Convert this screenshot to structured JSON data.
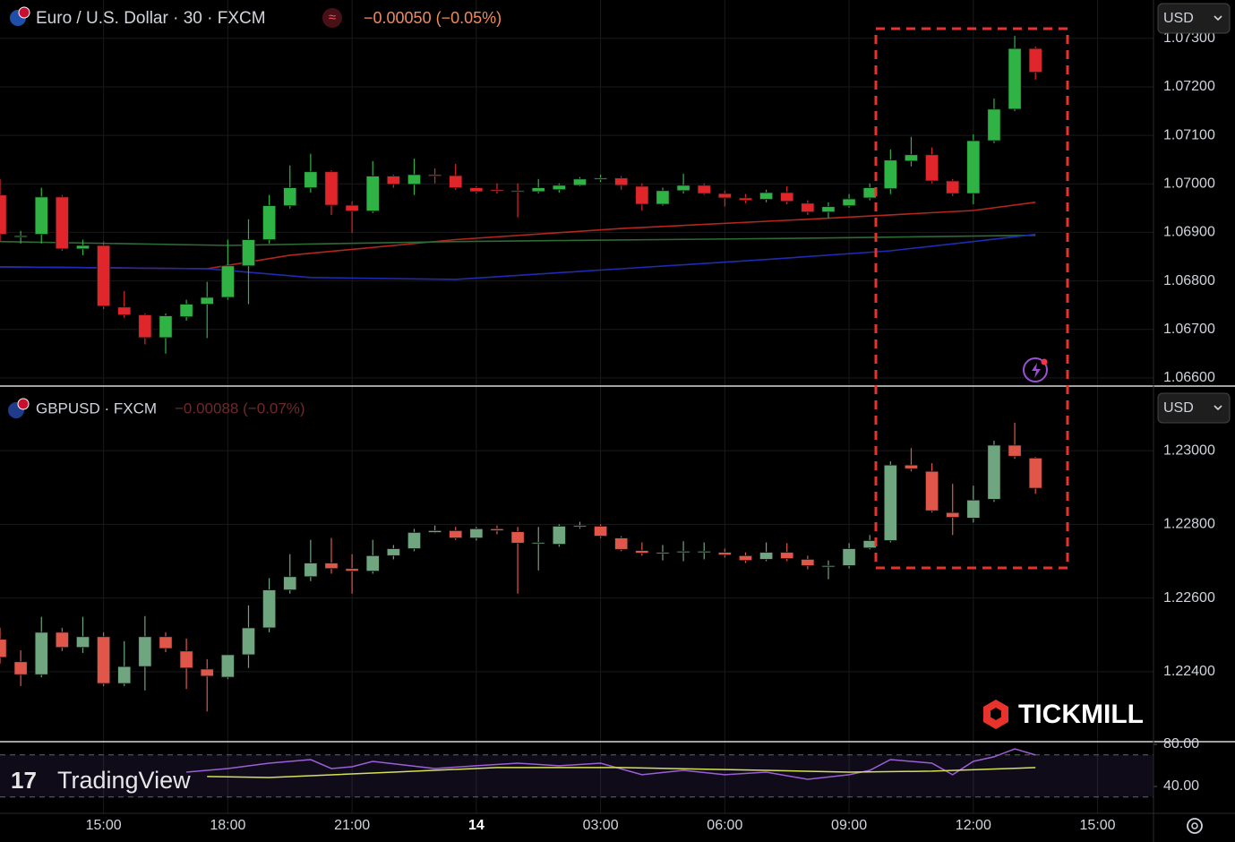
{
  "chart_data": [
    {
      "type": "candlestick",
      "title": "Euro / U.S. Dollar · 30 · FXCM",
      "change": "−0.00050 (−0.05%)",
      "currency": "USD",
      "up_color": "#2fb344",
      "down_color": "#e0262a",
      "ylim": [
        1.06585,
        1.07379
      ],
      "yticks": [
        {
          "value": 1.073,
          "label": "1.07300"
        },
        {
          "value": 1.072,
          "label": "1.07200"
        },
        {
          "value": 1.071,
          "label": "1.07100"
        },
        {
          "value": 1.07,
          "label": "1.07000"
        },
        {
          "value": 1.069,
          "label": "1.06900"
        },
        {
          "value": 1.068,
          "label": "1.06800"
        },
        {
          "value": 1.067,
          "label": "1.06700"
        },
        {
          "value": 1.066,
          "label": "1.06600"
        }
      ],
      "open": [
        1.06977,
        1.06892,
        1.06896,
        1.06973,
        1.06866,
        1.06873,
        1.06746,
        1.0673,
        1.06683,
        1.06726,
        1.06752,
        1.06766,
        1.06831,
        1.06885,
        1.06955,
        1.06992,
        1.07025,
        1.06956,
        1.06944,
        1.07016,
        1.06999,
        1.07019,
        1.07017,
        1.06992,
        1.06988,
        1.06986,
        1.06984,
        1.06988,
        1.06997,
        1.0701,
        1.07012,
        1.06995,
        1.06958,
        1.06986,
        1.06997,
        1.0698,
        1.06971,
        1.06968,
        1.06982,
        1.0696,
        1.06942,
        1.06955,
        1.06971,
        1.0699,
        1.07047,
        1.0706,
        1.07006,
        1.0698,
        1.07089,
        1.07154,
        1.07279
      ],
      "high": [
        1.0701,
        1.06903,
        1.06992,
        1.06977,
        1.06885,
        1.06881,
        1.06779,
        1.06733,
        1.06733,
        1.06761,
        1.06798,
        1.06885,
        1.06927,
        1.06977,
        1.07038,
        1.07062,
        1.07028,
        1.06964,
        1.07047,
        1.07019,
        1.07052,
        1.07032,
        1.07041,
        1.06995,
        1.07001,
        1.07001,
        1.0701,
        1.07001,
        1.07014,
        1.07019,
        1.07016,
        1.07001,
        1.06992,
        1.07021,
        1.07001,
        1.06986,
        1.06979,
        1.06988,
        1.06995,
        1.06966,
        1.06962,
        1.06979,
        1.07001,
        1.07071,
        1.07097,
        1.07075,
        1.0701,
        1.07102,
        1.07176,
        1.07305,
        1.07283
      ],
      "low": [
        1.06881,
        1.06877,
        1.06877,
        1.06862,
        1.06853,
        1.06742,
        1.06724,
        1.06669,
        1.0665,
        1.06718,
        1.06682,
        1.06761,
        1.06752,
        1.06877,
        1.06949,
        1.06982,
        1.06936,
        1.06899,
        1.0694,
        1.06992,
        1.06977,
        1.07001,
        1.06988,
        1.0698,
        1.0698,
        1.06931,
        1.0698,
        1.06982,
        1.06995,
        1.07004,
        1.06988,
        1.06945,
        1.06955,
        1.0698,
        1.06977,
        1.06953,
        1.0696,
        1.06962,
        1.06958,
        1.06936,
        1.06929,
        1.06951,
        1.06966,
        1.06979,
        1.07036,
        1.07001,
        1.06975,
        1.06958,
        1.07084,
        1.0715,
        1.07215
      ],
      "close": [
        1.06896,
        1.06893,
        1.06973,
        1.06866,
        1.06873,
        1.06748,
        1.0673,
        1.06683,
        1.06728,
        1.06752,
        1.06766,
        1.06831,
        1.06885,
        1.06955,
        1.06992,
        1.07025,
        1.06956,
        1.06944,
        1.07016,
        1.06999,
        1.07019,
        1.07016,
        1.06992,
        1.06984,
        1.06986,
        1.06984,
        1.06992,
        1.06997,
        1.0701,
        1.07012,
        1.06997,
        1.06958,
        1.06986,
        1.06997,
        1.0698,
        1.06971,
        1.06966,
        1.06982,
        1.06964,
        1.06942,
        1.06953,
        1.06969,
        1.06992,
        1.07049,
        1.0706,
        1.07006,
        1.0698,
        1.07089,
        1.07154,
        1.07279,
        1.0723
      ],
      "overlays": [
        {
          "color": "#b3261e",
          "x": [
            0,
            10,
            14,
            22,
            30,
            39,
            43,
            47,
            50
          ],
          "values": [
            1.06829,
            1.06825,
            1.06853,
            1.06885,
            1.06908,
            1.06927,
            1.06936,
            1.06945,
            1.06962
          ]
        },
        {
          "color": "#2e6b34",
          "x": [
            0,
            11,
            22,
            39,
            50
          ],
          "values": [
            1.06881,
            1.06873,
            1.06881,
            1.06888,
            1.06894
          ]
        },
        {
          "color": "#1f2bb0",
          "x": [
            0,
            10,
            15,
            22,
            30,
            37,
            43,
            47,
            50
          ],
          "values": [
            1.06829,
            1.06825,
            1.06807,
            1.06803,
            1.06825,
            1.06844,
            1.06862,
            1.06881,
            1.06896
          ]
        }
      ]
    },
    {
      "type": "candlestick",
      "title": "GBPUSD · FXCM",
      "change": "−0.00088 (−0.07%)",
      "currency": "USD",
      "up_color": "#6fa57f",
      "down_color": "#e0574a",
      "ylim": [
        1.2221,
        1.23173
      ],
      "yticks": [
        {
          "value": 1.23,
          "label": "1.23000"
        },
        {
          "value": 1.228,
          "label": "1.22800"
        },
        {
          "value": 1.226,
          "label": "1.22600"
        },
        {
          "value": 1.224,
          "label": "1.22400"
        }
      ],
      "open": [
        1.22488,
        1.22427,
        1.22392,
        1.22507,
        1.22466,
        1.22495,
        1.22368,
        1.22414,
        1.22495,
        1.22456,
        1.22407,
        1.22385,
        1.22446,
        1.22519,
        1.22622,
        1.22658,
        1.22695,
        1.2268,
        1.22673,
        1.22715,
        1.22734,
        1.22778,
        1.22783,
        1.22763,
        1.22788,
        1.2278,
        1.22749,
        1.22746,
        1.22795,
        1.22795,
        1.22763,
        1.22729,
        1.22722,
        1.22724,
        1.22724,
        1.22724,
        1.22715,
        1.22705,
        1.22724,
        1.22705,
        1.22685,
        1.22688,
        1.22736,
        1.22756,
        1.22961,
        1.22944,
        1.22832,
        1.22817,
        1.22868,
        1.23015,
        1.2298
      ],
      "high": [
        1.22519,
        1.22458,
        1.22549,
        1.22519,
        1.22549,
        1.22507,
        1.22483,
        1.22551,
        1.22507,
        1.2249,
        1.22434,
        1.22446,
        1.2258,
        1.22654,
        1.22719,
        1.22758,
        1.22763,
        1.22719,
        1.22758,
        1.22744,
        1.22788,
        1.22797,
        1.22793,
        1.22793,
        1.22797,
        1.22793,
        1.22793,
        1.228,
        1.22807,
        1.228,
        1.22768,
        1.22751,
        1.22744,
        1.22754,
        1.22751,
        1.22734,
        1.22724,
        1.22751,
        1.22749,
        1.22715,
        1.22702,
        1.22749,
        1.22771,
        1.22971,
        1.23007,
        1.22966,
        1.2291,
        1.22905,
        1.23027,
        1.23076,
        1.22983
      ],
      "low": [
        1.22422,
        1.22361,
        1.22385,
        1.22456,
        1.22451,
        1.22361,
        1.22361,
        1.22349,
        1.22453,
        1.22353,
        1.22292,
        1.2238,
        1.2241,
        1.22507,
        1.22612,
        1.22646,
        1.22666,
        1.22612,
        1.22666,
        1.22705,
        1.22727,
        1.22776,
        1.22758,
        1.22756,
        1.22773,
        1.22612,
        1.22675,
        1.22739,
        1.22788,
        1.22763,
        1.22727,
        1.22715,
        1.22702,
        1.227,
        1.22705,
        1.2271,
        1.22695,
        1.227,
        1.227,
        1.22678,
        1.22651,
        1.2268,
        1.22732,
        1.22751,
        1.22944,
        1.22832,
        1.22771,
        1.22805,
        1.22861,
        1.22978,
        1.22883
      ],
      "close": [
        1.22439,
        1.22392,
        1.22507,
        1.22466,
        1.22495,
        1.22368,
        1.22414,
        1.22495,
        1.22463,
        1.2241,
        1.22388,
        1.22446,
        1.22519,
        1.22622,
        1.22658,
        1.22695,
        1.2268,
        1.22673,
        1.22715,
        1.22734,
        1.22778,
        1.22783,
        1.22763,
        1.22788,
        1.22783,
        1.22749,
        1.22751,
        1.22795,
        1.22797,
        1.22768,
        1.22732,
        1.22722,
        1.22724,
        1.22727,
        1.22727,
        1.22717,
        1.22702,
        1.22724,
        1.22707,
        1.22688,
        1.22688,
        1.22734,
        1.22756,
        1.22961,
        1.22951,
        1.22837,
        1.22819,
        1.22866,
        1.23015,
        1.22985,
        1.22898
      ]
    },
    {
      "type": "line",
      "ylim": [
        14.5,
        82.5
      ],
      "yticks": [
        {
          "value": 80,
          "label": "80.00"
        },
        {
          "value": 40,
          "label": "40.00"
        }
      ],
      "levels": [
        70,
        30
      ],
      "band_color": "#7e57c2",
      "xlim": [
        0,
        55.7
      ],
      "xticks": [
        {
          "value": 5,
          "label": "15:00"
        },
        {
          "value": 11,
          "label": "18:00"
        },
        {
          "value": 17,
          "label": "21:00"
        },
        {
          "value": 23,
          "label": "14"
        },
        {
          "value": 29,
          "label": "03:00"
        },
        {
          "value": 35,
          "label": "06:00"
        },
        {
          "value": 41,
          "label": "09:00"
        },
        {
          "value": 47,
          "label": "12:00"
        },
        {
          "value": 53,
          "label": "15:00"
        }
      ],
      "series": [
        {
          "color": "#9c5fd6",
          "x": [
            9,
            11,
            13,
            15,
            16,
            17,
            18,
            21,
            23,
            25,
            27,
            29,
            31,
            33,
            35,
            37,
            39,
            41,
            42,
            43,
            44,
            45,
            46,
            47,
            48,
            49,
            50
          ],
          "values": [
            53.6,
            57.0,
            62.1,
            65.5,
            57.0,
            58.7,
            63.8,
            57.0,
            59.6,
            62.1,
            59.6,
            62.1,
            51.1,
            55.3,
            51.1,
            53.6,
            46.8,
            51.1,
            55.3,
            65.5,
            63.8,
            62.1,
            51.1,
            63.8,
            68.1,
            75.7,
            69.8
          ]
        },
        {
          "color": "#d4e157",
          "x": [
            10,
            13,
            19,
            24,
            30,
            37,
            41,
            45,
            50
          ],
          "values": [
            49.4,
            48.5,
            53.6,
            57.9,
            57.9,
            55.3,
            53.6,
            54.5,
            57.9
          ]
        }
      ]
    }
  ],
  "branding": {
    "broker": "TICKMILL",
    "platform": "TradingView"
  }
}
